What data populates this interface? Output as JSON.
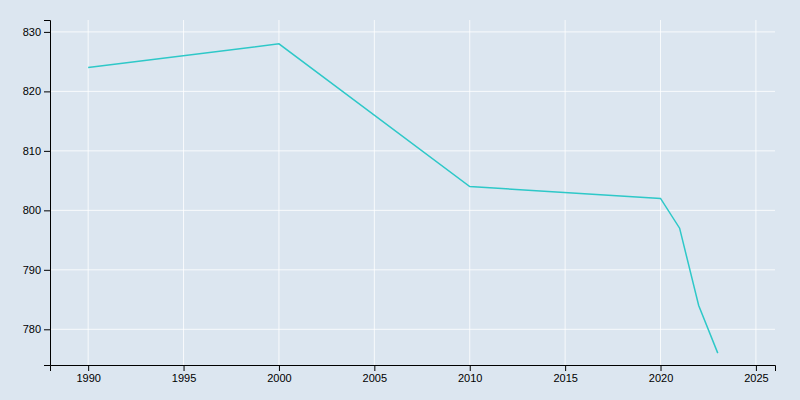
{
  "chart_data": {
    "type": "line",
    "x": [
      1990,
      2000,
      2010,
      2020,
      2021,
      2022,
      2023
    ],
    "values": [
      824,
      828,
      804,
      802,
      797,
      784,
      776
    ],
    "color": "#2ec8c8",
    "xlim": [
      1988,
      2026
    ],
    "ylim": [
      774,
      832
    ],
    "xticks": [
      1990,
      1995,
      2000,
      2005,
      2010,
      2015,
      2020,
      2025
    ],
    "yticks": [
      780,
      790,
      800,
      810,
      820,
      830
    ],
    "grid": true
  }
}
